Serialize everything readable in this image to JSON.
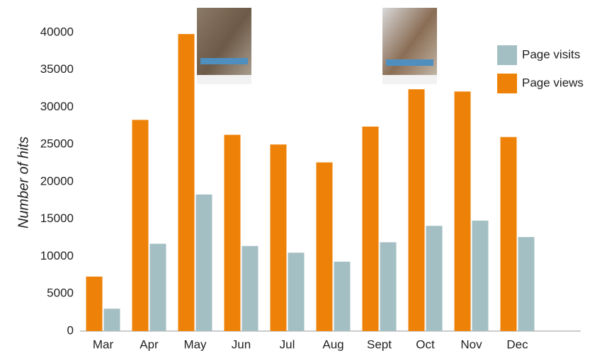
{
  "chart_data": {
    "type": "bar",
    "y_label": "Number of hits",
    "categories": [
      "Mar",
      "Apr",
      "May",
      "Jun",
      "Jul",
      "Aug",
      "Sept",
      "Oct",
      "Nov",
      "Dec"
    ],
    "series": [
      {
        "name": "Page views",
        "color": "#ee8208",
        "values": [
          7300,
          28300,
          39800,
          26300,
          25000,
          22600,
          27400,
          32400,
          32100,
          26000
        ]
      },
      {
        "name": "Page visits",
        "color": "#a4bfc4",
        "values": [
          3000,
          11700,
          18300,
          11400,
          10500,
          9300,
          11900,
          14100,
          14800,
          12600
        ]
      }
    ],
    "ylim": [
      0,
      40000
    ],
    "yticks": [
      0,
      5000,
      10000,
      15000,
      20000,
      25000,
      30000,
      35000,
      40000
    ],
    "grid": false
  }
}
